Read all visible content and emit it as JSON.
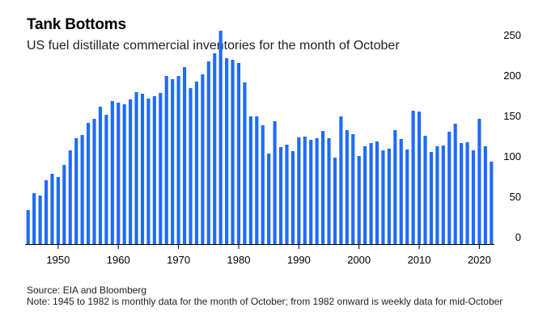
{
  "chart_data": {
    "type": "bar",
    "title": "Tank Bottoms",
    "subtitle": "US fuel distillate commercial inventories for the month of October",
    "x": [
      1945,
      1946,
      1947,
      1948,
      1949,
      1950,
      1951,
      1952,
      1953,
      1954,
      1955,
      1956,
      1957,
      1958,
      1959,
      1960,
      1961,
      1962,
      1963,
      1964,
      1965,
      1966,
      1967,
      1968,
      1969,
      1970,
      1971,
      1972,
      1973,
      1974,
      1975,
      1976,
      1977,
      1978,
      1979,
      1980,
      1981,
      1982,
      1983,
      1984,
      1985,
      1986,
      1987,
      1988,
      1989,
      1990,
      1991,
      1992,
      1993,
      1994,
      1995,
      1996,
      1997,
      1998,
      1999,
      2000,
      2001,
      2002,
      2003,
      2004,
      2005,
      2006,
      2007,
      2008,
      2009,
      2010,
      2011,
      2012,
      2013,
      2014,
      2015,
      2016,
      2017,
      2018,
      2019,
      2020,
      2021,
      2022
    ],
    "values": [
      42,
      63,
      60,
      79,
      87,
      83,
      98,
      116,
      131,
      135,
      150,
      155,
      170,
      160,
      177,
      175,
      173,
      179,
      188,
      186,
      180,
      183,
      187,
      208,
      204,
      208,
      219,
      193,
      201,
      210,
      226,
      236,
      264,
      230,
      228,
      224,
      200,
      158,
      158,
      147,
      112,
      152,
      120,
      123,
      115,
      132,
      133,
      129,
      131,
      140,
      131,
      107,
      158,
      141,
      136,
      109,
      121,
      125,
      127,
      116,
      118,
      141,
      130,
      117,
      165,
      164,
      134,
      114,
      121,
      122,
      139,
      149,
      125,
      126,
      116,
      155,
      121,
      102
    ],
    "xticks": [
      "1950",
      "1960",
      "1970",
      "1980",
      "1990",
      "2000",
      "2010",
      "2020"
    ],
    "yticks": [
      "0",
      "50",
      "100",
      "150",
      "200",
      "250"
    ],
    "ylim": [
      0,
      270
    ],
    "bar_color": "#1f6bff",
    "grid": false
  },
  "footer": {
    "source": "Source: EIA and Bloomberg",
    "note": "Note: 1945 to 1982 is monthly data for the month of October; from 1982 onward is weekly data for mid-October"
  }
}
